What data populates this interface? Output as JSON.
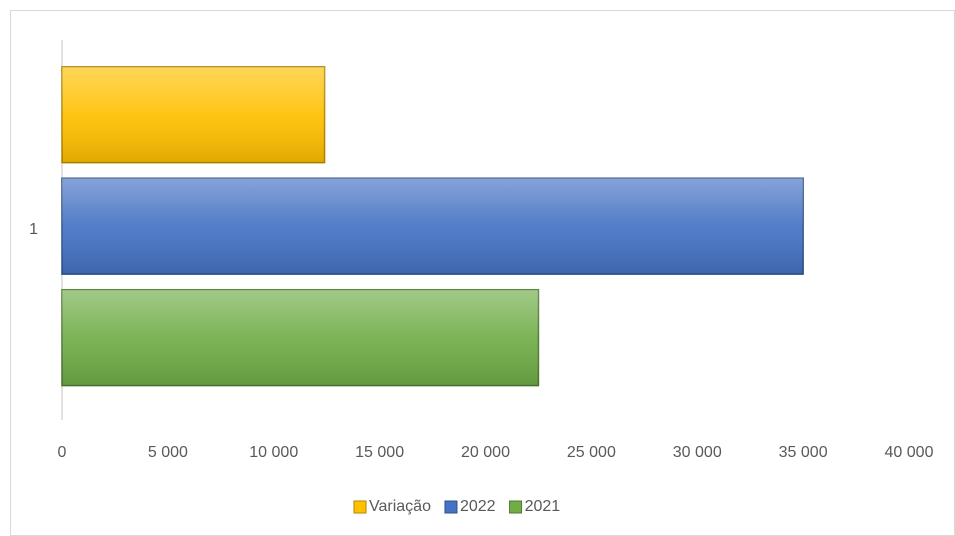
{
  "chart_data": {
    "type": "bar",
    "orientation": "horizontal",
    "categories": [
      "1"
    ],
    "series": [
      {
        "name": "Variação",
        "color": "#ffc000",
        "values": [
          12400
        ]
      },
      {
        "name": "2022",
        "color": "#4472c4",
        "values": [
          35000
        ]
      },
      {
        "name": "2021",
        "color": "#70ad47",
        "values": [
          22500
        ]
      }
    ],
    "xlim": [
      0,
      40000
    ],
    "xticks": [
      0,
      {
        "value": 5000,
        "label": "5 000"
      },
      {
        "value": 10000,
        "label": "10 000"
      },
      {
        "value": 15000,
        "label": "15 000"
      },
      {
        "value": 20000,
        "label": "20 000"
      },
      {
        "value": 25000,
        "label": "25 000"
      },
      {
        "value": 30000,
        "label": "30 000"
      },
      {
        "value": 35000,
        "label": "35 000"
      },
      {
        "value": 40000,
        "label": "40 000"
      }
    ],
    "grid": false,
    "legend": "bottom"
  }
}
